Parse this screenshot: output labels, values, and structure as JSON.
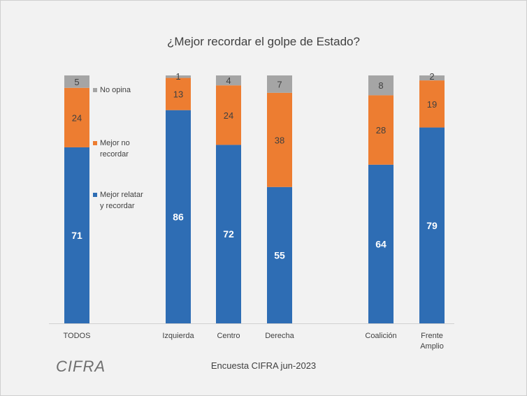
{
  "chart_data": {
    "type": "bar",
    "stacked": true,
    "title": "¿Mejor recordar el golpe de Estado?",
    "categories": [
      "TODOS",
      "Izquierda",
      "Centro",
      "Derecha",
      "Coalición",
      "Frente Amplio"
    ],
    "category_label_lines": [
      [
        "TODOS"
      ],
      [
        "Izquierda"
      ],
      [
        "Centro"
      ],
      [
        "Derecha"
      ],
      [
        "Coalición"
      ],
      [
        "Frente",
        "Amplio"
      ]
    ],
    "series": [
      {
        "name": "Mejor relatar y recordar",
        "legend_lines": [
          "Mejor relatar",
          "y recordar"
        ],
        "color": "#2e6db4",
        "values": [
          71,
          86,
          72,
          55,
          64,
          79
        ]
      },
      {
        "name": "Mejor no recordar",
        "legend_lines": [
          "Mejor no",
          "recordar"
        ],
        "color": "#ed7d31",
        "values": [
          24,
          13,
          24,
          38,
          28,
          19
        ]
      },
      {
        "name": "No opina",
        "legend_lines": [
          "No opina"
        ],
        "color": "#a5a5a5",
        "values": [
          5,
          1,
          4,
          7,
          8,
          2
        ]
      }
    ],
    "ylim": [
      0,
      100
    ],
    "xlabel": "",
    "ylabel": "",
    "grid": false,
    "legend_position": "inside-left"
  },
  "footer": {
    "source": "Encuesta CIFRA  jun-2023",
    "logo": "CIFRA"
  }
}
